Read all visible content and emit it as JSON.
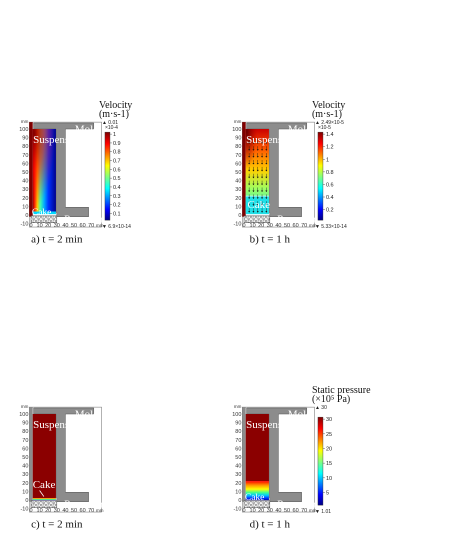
{
  "axis": {
    "unit": "mm",
    "y_ticks": [
      "100",
      "90",
      "80",
      "70",
      "60",
      "50",
      "40",
      "30",
      "20",
      "10",
      "0",
      "-10"
    ],
    "x_ticks": [
      "0",
      "10",
      "20",
      "30",
      "40",
      "50",
      "60",
      "70"
    ]
  },
  "labels": {
    "suspension": "Suspension",
    "mold": "Mold",
    "cake": "Cake",
    "porous_media": "Porous media"
  },
  "captions": {
    "a": "a) t = 2 min",
    "b": "b) t = 1 h",
    "c": "c) t = 2 min",
    "d": "d) t = 1 h"
  },
  "colorbars": {
    "a": {
      "title_line1": "Velocity",
      "title_line2": "(m·s-1)",
      "max_marker": "▲ 0.01",
      "multiplier": "×10-4",
      "ticks": [
        "1",
        "0.9",
        "0.8",
        "0.7",
        "0.6",
        "0.5",
        "0.4",
        "0.3",
        "0.2",
        "0.1"
      ],
      "min_marker": "▼ 6.9×10-14"
    },
    "b": {
      "title_line1": "Velocity",
      "title_line2": "(m·s-1)",
      "max_marker": "▲ 2.49×10-5",
      "multiplier": "×10-5",
      "ticks": [
        "1.4",
        "1.2",
        "1",
        "0.8",
        "0.6",
        "0.4",
        "0.2"
      ],
      "min_marker": "▼ 5.33×10-14"
    },
    "d": {
      "title_line1": "Static pressure",
      "title_line2": "(×10⁵ Pa)",
      "max_marker": "▲ 30",
      "ticks": [
        "30",
        "25",
        "20",
        "15",
        "10",
        "5"
      ],
      "min_marker": "▼ 1.01"
    }
  },
  "colors": {
    "mold": "#8c8c8c",
    "suspension_red": "#8b0000",
    "border": "#333333"
  }
}
